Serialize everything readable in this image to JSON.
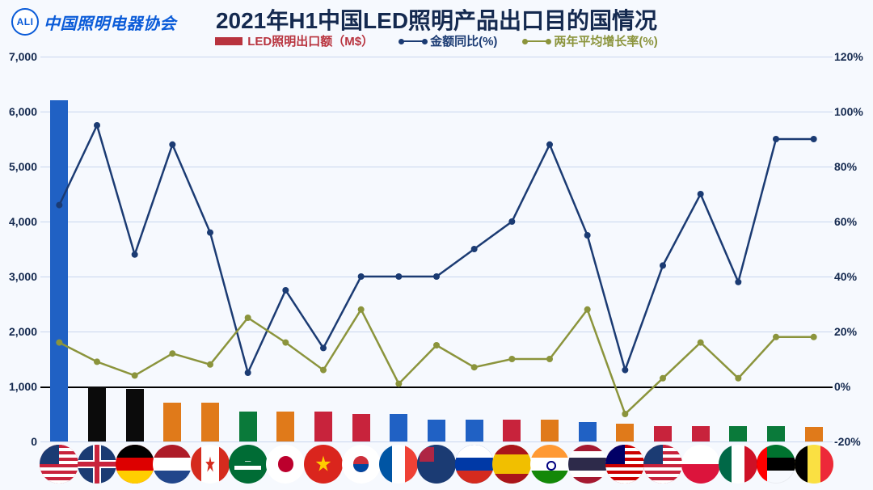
{
  "logo_text": "中国照明电器协会",
  "logo_badge": "ALI",
  "title": "2021年H1中国LED照明产品出口目的国情况",
  "legend": {
    "bar": "LED照明出口额（M$）",
    "line1": "金额同比(%)",
    "line2": "两年平均增长率(%)"
  },
  "chart": {
    "type": "combo-bar-dual-line-dual-axis",
    "background_color": "#f6f9fe",
    "grid_color": "#c9d6ee",
    "baseline_color": "#000000",
    "title_fontsize": 28,
    "label_fontsize": 14,
    "y_left": {
      "min": 0,
      "max": 7000,
      "step": 1000
    },
    "y_right": {
      "min": -20,
      "max": 120,
      "step": 20,
      "suffix": "%"
    },
    "series_bar": {
      "color_main": "#2061c4",
      "color_others": "#0b0b0b",
      "colors_by_flag": [
        "#2061c4",
        "#0b0b0b",
        "#0b0b0b",
        "#e07a1a",
        "#e07a1a",
        "#0a7a3a",
        "#e07a1a",
        "#c8233c",
        "#c8233c",
        "#2061c4",
        "#2061c4",
        "#2061c4",
        "#c8233c",
        "#e07a1a",
        "#2061c4",
        "#e07a1a",
        "#c8233c",
        "#c8233c",
        "#0a7a3a",
        "#0a7a3a",
        "#e07a1a"
      ],
      "values": [
        6200,
        1000,
        950,
        700,
        700,
        550,
        550,
        550,
        500,
        500,
        400,
        400,
        400,
        400,
        350,
        320,
        280,
        280,
        280,
        280,
        260
      ]
    },
    "series_line_yoy": {
      "color": "#1b3b73",
      "marker": "circle",
      "line_width": 2.5,
      "values_pct": [
        66,
        95,
        48,
        88,
        56,
        5,
        35,
        14,
        40,
        40,
        40,
        50,
        60,
        88,
        55,
        6,
        44,
        70,
        38,
        90,
        90
      ]
    },
    "series_line_2yr": {
      "color": "#8b943c",
      "marker": "circle",
      "line_width": 2.5,
      "values_pct": [
        16,
        9,
        4,
        12,
        8,
        25,
        16,
        6,
        28,
        1,
        15,
        7,
        10,
        10,
        28,
        -10,
        3,
        16,
        3,
        18,
        18
      ]
    },
    "categories": [
      "US",
      "UK",
      "DE",
      "NL",
      "CA",
      "SA",
      "JP",
      "VN",
      "KR",
      "FR",
      "AU",
      "RU",
      "ES",
      "IN",
      "TH",
      "MY",
      "US2",
      "PL",
      "MX",
      "AE",
      "BE"
    ]
  },
  "flags": {
    "US": {
      "bg": "#c8233c",
      "stripes": "#ffffff",
      "canton": "#1b3b73"
    },
    "UK": {
      "bg": "#1b3b73",
      "cross": "#ffffff",
      "diag": "#c8233c"
    },
    "DE": {
      "t": "#000000",
      "m": "#dd0000",
      "b": "#ffce00"
    },
    "NL": {
      "t": "#ae1c28",
      "m": "#ffffff",
      "b": "#21468b"
    },
    "CA": {
      "side": "#d52b1e",
      "mid": "#ffffff"
    },
    "SA": {
      "bg": "#006c35",
      "fg": "#ffffff"
    },
    "JP": {
      "bg": "#ffffff",
      "dot": "#bc002d"
    },
    "VN": {
      "bg": "#da251d",
      "star": "#ffcd00"
    },
    "KR": {
      "bg": "#ffffff",
      "r": "#cd2e3a",
      "b": "#0047a0"
    },
    "FR": {
      "l": "#0055a4",
      "m": "#ffffff",
      "r": "#ef4135"
    },
    "AU": {
      "bg": "#1b3b73",
      "uj": "#c8233c"
    },
    "RU": {
      "t": "#ffffff",
      "m": "#0039a6",
      "b": "#d52b1e"
    },
    "ES": {
      "t": "#aa151b",
      "m": "#f1bf00",
      "b": "#aa151b"
    },
    "IN": {
      "t": "#ff9933",
      "m": "#ffffff",
      "b": "#138808"
    },
    "TH": {
      "a": "#a51931",
      "b": "#ffffff",
      "c": "#2d2a4a"
    },
    "MY": {
      "bg": "#cc0001",
      "stripes": "#ffffff",
      "canton": "#010066"
    },
    "US2": {
      "bg": "#c8233c",
      "stripes": "#ffffff",
      "canton": "#1b3b73"
    },
    "PL": {
      "t": "#ffffff",
      "b": "#dc143c"
    },
    "MX": {
      "l": "#006847",
      "m": "#ffffff",
      "r": "#ce1126"
    },
    "AE": {
      "l": "#ff0000",
      "t": "#00732f",
      "m": "#ffffff",
      "b": "#000000"
    },
    "BE": {
      "l": "#000000",
      "m": "#fae042",
      "r": "#ed2939"
    }
  }
}
